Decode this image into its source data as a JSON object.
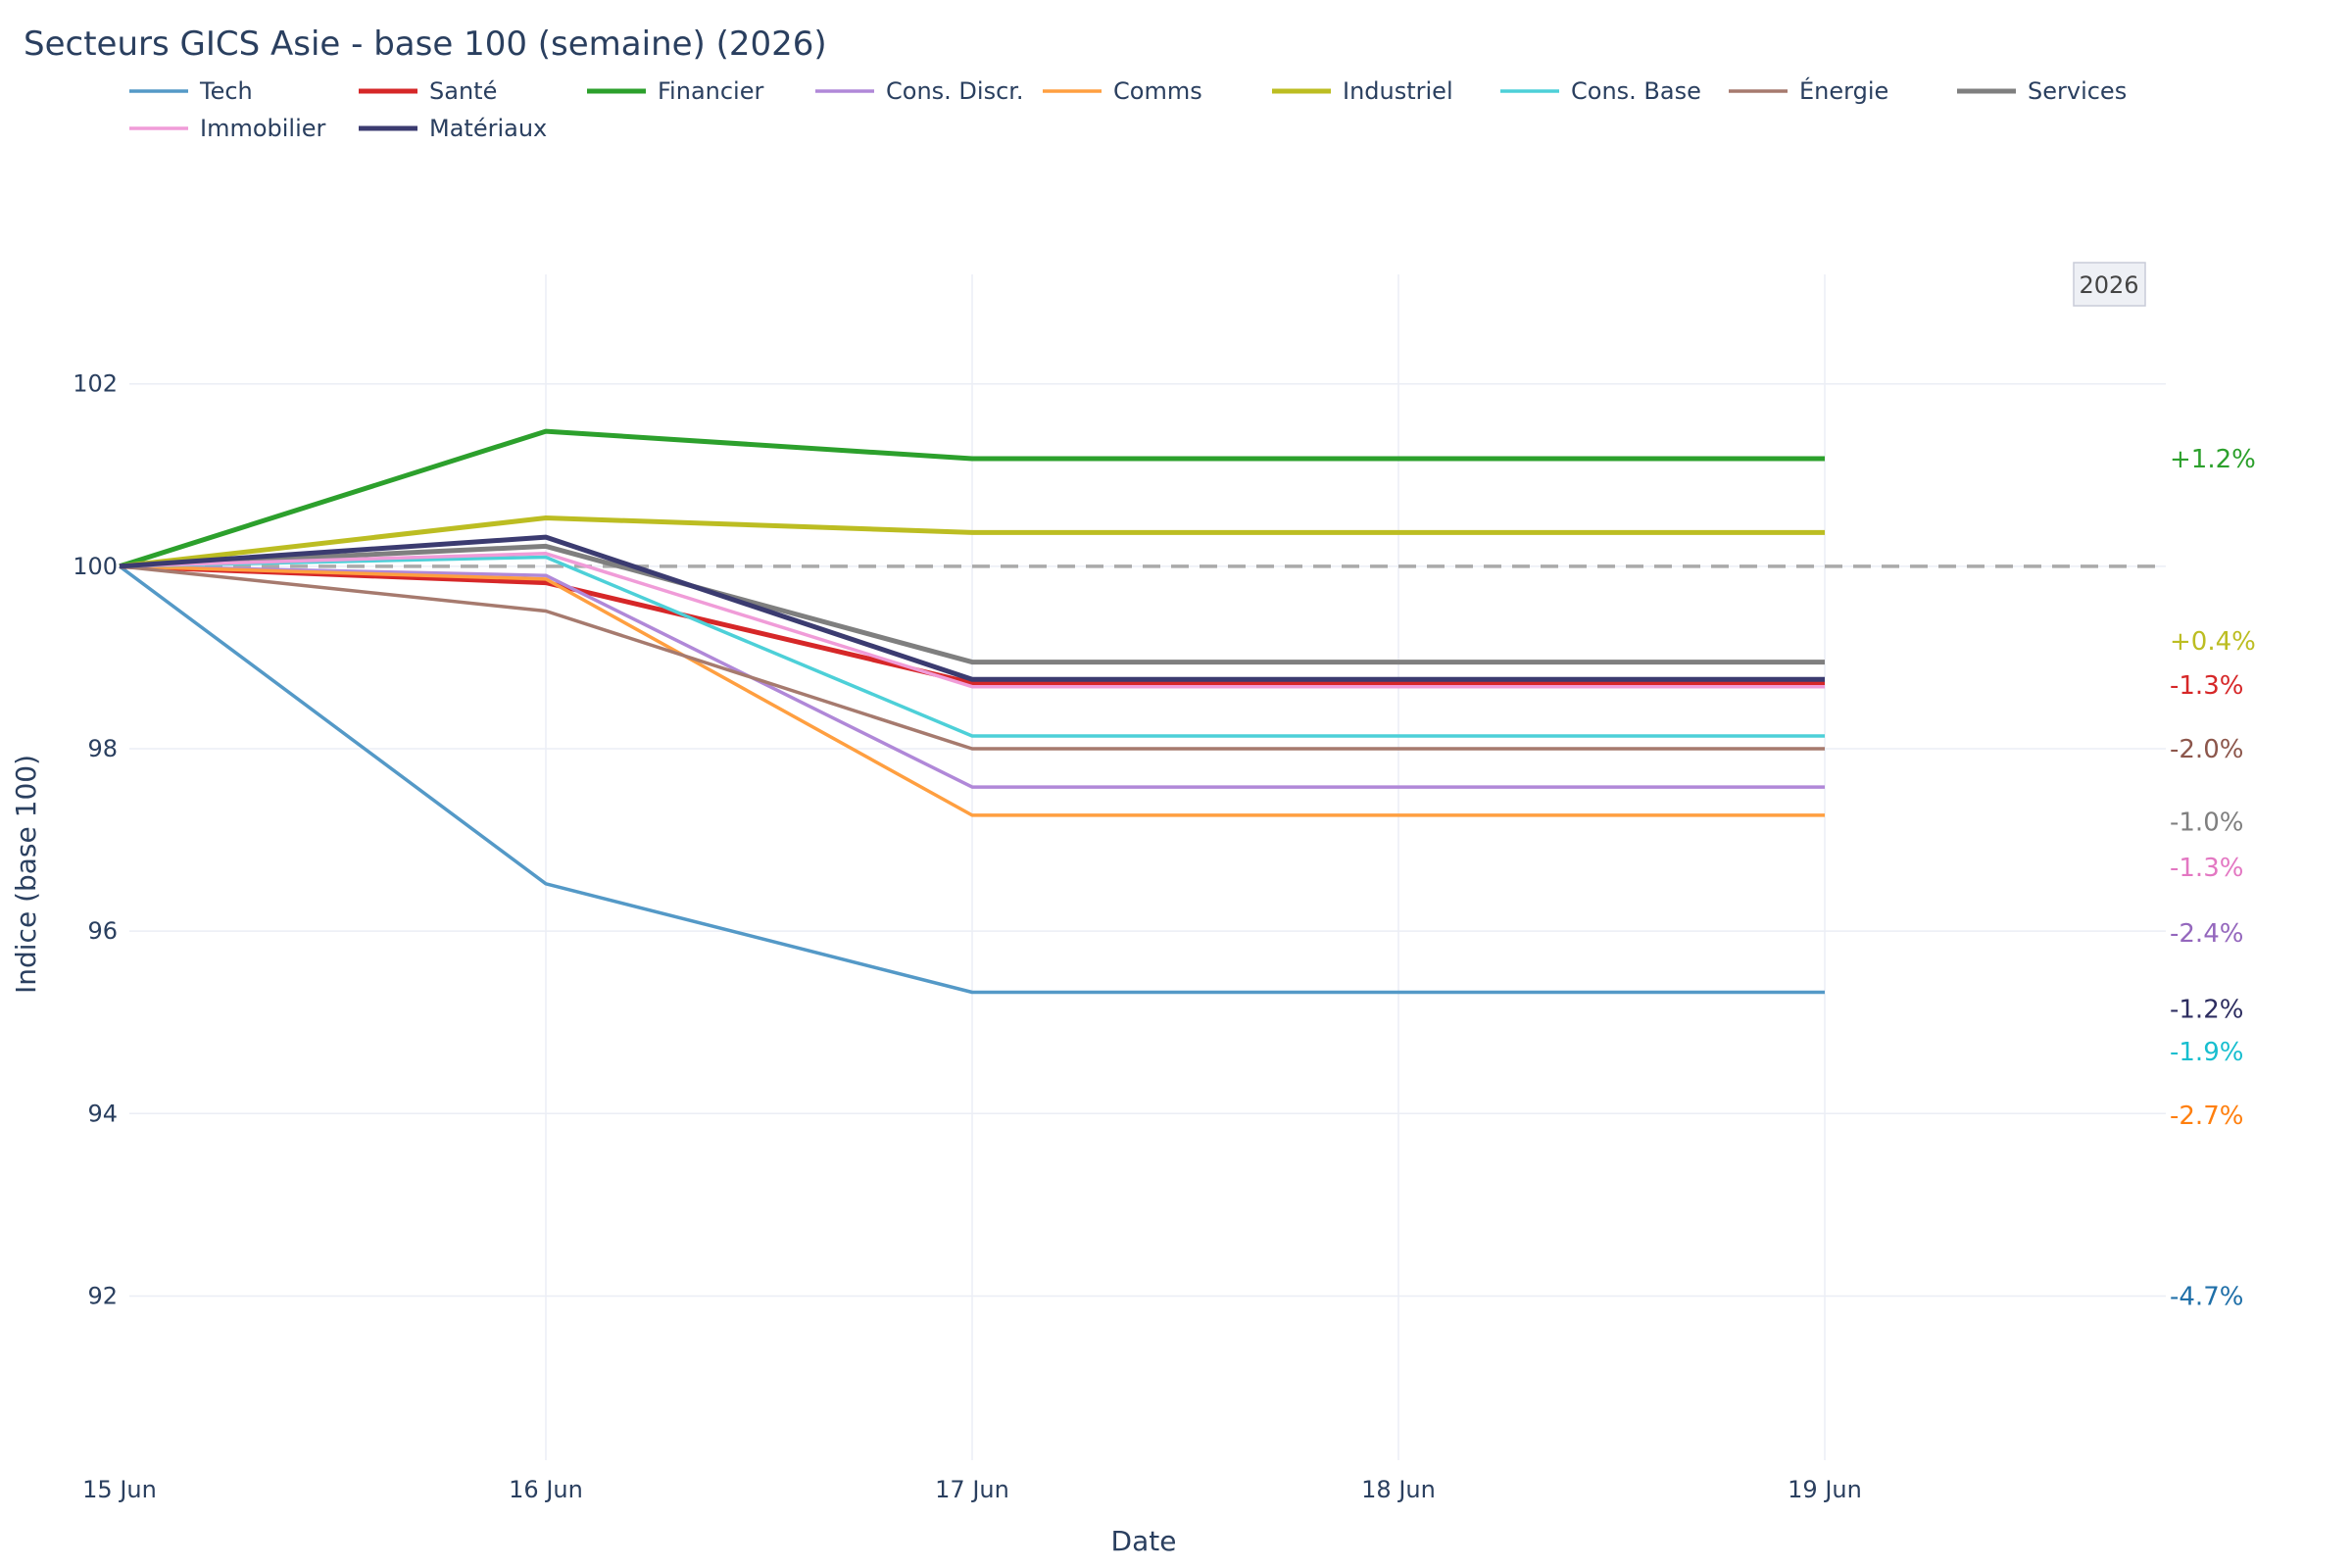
{
  "chart_data": {
    "type": "line",
    "title": "Secteurs GICS Asie - base 100 (semaine) (2026)",
    "xlabel": "Date",
    "ylabel": "Indice (base 100)",
    "x": [
      "15 Jun",
      "16 Jun",
      "17 Jun",
      "18 Jun",
      "19 Jun"
    ],
    "xlim": [
      0,
      4.8
    ],
    "ylim": [
      90.2,
      103.2
    ],
    "yticks": [
      92,
      94,
      96,
      98,
      100,
      102
    ],
    "grid": true,
    "legend_position": "top-left",
    "reference_line": {
      "value": 100,
      "style": "dashed",
      "color": "#aaaaaa"
    },
    "badge": "2026",
    "series": [
      {
        "name": "Tech",
        "color": "#5499c7",
        "values": [
          100,
          96.52,
          95.33,
          95.33,
          95.33
        ],
        "end_label": "-4.7%",
        "label_color": "#1f6fa8",
        "label_y": 92.0,
        "width": 2
      },
      {
        "name": "Santé",
        "color": "#d62728",
        "values": [
          100,
          99.82,
          98.72,
          98.72,
          98.72
        ],
        "end_label": "-1.3%",
        "label_color": "#d62728",
        "label_y": 98.7,
        "width": 3
      },
      {
        "name": "Financier",
        "color": "#2ca02c",
        "values": [
          100,
          101.48,
          101.18,
          101.18,
          101.18
        ],
        "end_label": "+1.2%",
        "label_color": "#2ca02c",
        "label_y": 101.18,
        "width": 3
      },
      {
        "name": "Cons. Discr.",
        "color": "#b088d8",
        "values": [
          100,
          99.9,
          97.58,
          97.58,
          97.58
        ],
        "end_label": "-2.4%",
        "label_color": "#9467bd",
        "label_y": 95.98,
        "width": 2
      },
      {
        "name": "Comms",
        "color": "#ff9f40",
        "values": [
          100,
          99.86,
          97.27,
          97.27,
          97.27
        ],
        "end_label": "-2.7%",
        "label_color": "#ff7f0e",
        "label_y": 93.98,
        "width": 2
      },
      {
        "name": "Industriel",
        "color": "#bcbd22",
        "values": [
          100,
          100.53,
          100.37,
          100.37,
          100.37
        ],
        "end_label": "+0.4%",
        "label_color": "#bcbd22",
        "label_y": 99.18,
        "width": 3
      },
      {
        "name": "Cons. Base",
        "color": "#4dd0d8",
        "values": [
          100,
          100.1,
          98.14,
          98.14,
          98.14
        ],
        "end_label": "-1.9%",
        "label_color": "#17becf",
        "label_y": 94.68,
        "width": 2
      },
      {
        "name": "Énergie",
        "color": "#a67a6e",
        "values": [
          100,
          99.51,
          98.0,
          98.0,
          98.0
        ],
        "end_label": "-2.0%",
        "label_color": "#8c564b",
        "label_y": 98.0,
        "width": 2
      },
      {
        "name": "Services",
        "color": "#7f7f7f",
        "values": [
          100,
          100.22,
          98.95,
          98.95,
          98.95
        ],
        "end_label": "-1.0%",
        "label_color": "#7f7f7f",
        "label_y": 97.2,
        "width": 3
      },
      {
        "name": "Immobilier",
        "color": "#f09cd8",
        "values": [
          100,
          100.14,
          98.68,
          98.68,
          98.68
        ],
        "end_label": "-1.3%",
        "label_color": "#e377c2",
        "label_y": 96.7,
        "width": 2
      },
      {
        "name": "Matériaux",
        "color": "#3b3b70",
        "values": [
          100,
          100.32,
          98.76,
          98.76,
          98.76
        ],
        "end_label": "-1.2%",
        "label_color": "#2d2d60",
        "label_y": 95.15,
        "width": 3
      }
    ]
  }
}
